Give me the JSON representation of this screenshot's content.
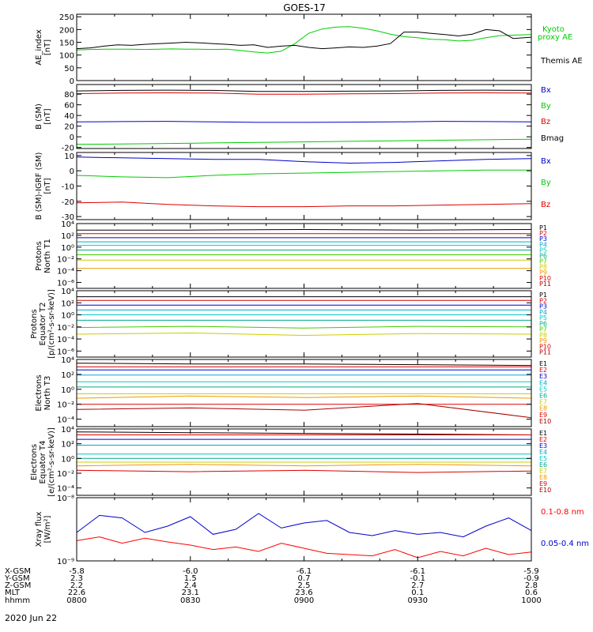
{
  "title": "GOES-17",
  "date": "2020 Jun 22",
  "colors": {
    "axis": "#000000",
    "red": "#dd0000",
    "green": "#00cc00",
    "blue": "#0000cc",
    "cyan": "#00aacc",
    "lightcyan": "#00c8c8",
    "teal": "#00aa88",
    "lime": "#44cc00",
    "yellow": "#cccc00",
    "orange": "#ee9900",
    "darkred": "#aa0000",
    "xray_red": "#ff0000"
  },
  "ephemeris": {
    "labels": [
      "X-GSM",
      "Y-GSM",
      "Z-GSM",
      "MLT",
      "hhmm"
    ],
    "columns": [
      [
        "-5.8",
        "2.3",
        "2.2",
        "22.6",
        "0800"
      ],
      [
        "-6.0",
        "1.5",
        "2.4",
        "23.1",
        "0830"
      ],
      [
        "-6.1",
        "0.7",
        "2.5",
        "23.6",
        "0900"
      ],
      [
        "-6.1",
        "-0.1",
        "2.7",
        "0.1",
        "0930"
      ],
      [
        "-5.9",
        "-0.9",
        "2.8",
        "0.6",
        "1000"
      ]
    ]
  },
  "chart_data": [
    {
      "type": "line",
      "ylabel": [
        "AE_index",
        "[nT]"
      ],
      "ylim": [
        0,
        260
      ],
      "yticks": [
        0,
        50,
        100,
        150,
        200,
        250
      ],
      "yticklabels": [
        "0",
        "50",
        "100",
        "150",
        "200",
        "250"
      ],
      "x": [
        0,
        0.03,
        0.06,
        0.09,
        0.12,
        0.15,
        0.18,
        0.21,
        0.24,
        0.27,
        0.3,
        0.33,
        0.36,
        0.39,
        0.42,
        0.45,
        0.48,
        0.51,
        0.54,
        0.57,
        0.6,
        0.63,
        0.66,
        0.69,
        0.72,
        0.75,
        0.78,
        0.81,
        0.84,
        0.87,
        0.9,
        0.93,
        0.96,
        1.0
      ],
      "series": [
        {
          "name": "Kyoto proxy AE",
          "label_lines": [
            "Kyoto",
            "proxy AE"
          ],
          "color": "#00cc00",
          "values": [
            120,
            122,
            123,
            123,
            123,
            122,
            123,
            124,
            123,
            123,
            122,
            123,
            118,
            112,
            108,
            115,
            145,
            185,
            202,
            210,
            211,
            205,
            195,
            182,
            172,
            168,
            162,
            160,
            155,
            158,
            168,
            176,
            178,
            180
          ]
        },
        {
          "name": "Themis AE",
          "label_lines": [
            "Themis AE"
          ],
          "color": "#000000",
          "values": [
            125,
            128,
            135,
            140,
            138,
            142,
            145,
            147,
            150,
            148,
            145,
            142,
            138,
            140,
            130,
            135,
            138,
            130,
            125,
            128,
            132,
            130,
            135,
            145,
            190,
            190,
            185,
            180,
            175,
            182,
            200,
            195,
            165,
            170
          ]
        }
      ]
    },
    {
      "type": "line",
      "ylabel": [
        "B (SM)",
        "[nT]"
      ],
      "ylim": [
        -22,
        98
      ],
      "yticks": [
        -20,
        0,
        20,
        40,
        60,
        80
      ],
      "yticklabels": [
        "-20",
        "0",
        "20",
        "40",
        "60",
        "80"
      ],
      "x": [
        0,
        0.1,
        0.2,
        0.3,
        0.4,
        0.5,
        0.6,
        0.7,
        0.8,
        0.9,
        1.0
      ],
      "series": [
        {
          "name": "Bx",
          "color": "#0000cc",
          "values": [
            28,
            28.5,
            29,
            28,
            27,
            27,
            27.5,
            28,
            29,
            28.5,
            28
          ]
        },
        {
          "name": "By",
          "color": "#00cc00",
          "values": [
            -14,
            -13.5,
            -12.5,
            -11.5,
            -10.5,
            -9.5,
            -8.5,
            -7.5,
            -6.5,
            -5.5,
            -4.5
          ]
        },
        {
          "name": "Bz",
          "color": "#dd0000",
          "values": [
            81,
            82,
            82.5,
            82,
            80,
            80,
            80.5,
            81,
            82,
            82.5,
            82
          ]
        },
        {
          "name": "Bmag",
          "color": "#000000",
          "values": [
            86,
            87,
            87.5,
            87,
            85,
            85,
            85.5,
            86,
            87,
            87.5,
            87
          ]
        }
      ]
    },
    {
      "type": "line",
      "ylabel": [
        "B (SM)-IGRF (SM)",
        "[nT]"
      ],
      "ylim": [
        -32,
        12
      ],
      "yticks": [
        -30,
        -20,
        -10,
        0,
        10
      ],
      "yticklabels": [
        "-30",
        "-20",
        "-10",
        "0",
        "10"
      ],
      "x": [
        0,
        0.1,
        0.2,
        0.3,
        0.4,
        0.5,
        0.6,
        0.7,
        0.8,
        0.9,
        1.0
      ],
      "series": [
        {
          "name": "Bx",
          "color": "#0000cc",
          "values": [
            9,
            8.5,
            8,
            7.5,
            7.5,
            6,
            5,
            5.5,
            6.5,
            7.5,
            8
          ]
        },
        {
          "name": "By",
          "color": "#00cc00",
          "values": [
            -3,
            -4,
            -4.5,
            -3,
            -2,
            -1.5,
            -1,
            -0.5,
            0,
            0.5,
            0.5
          ]
        },
        {
          "name": "Bz",
          "color": "#dd0000",
          "values": [
            -21,
            -20.5,
            -22,
            -23,
            -23.5,
            -23.5,
            -23,
            -23,
            -22.5,
            -22,
            -21.5
          ]
        }
      ]
    },
    {
      "type": "line",
      "log": true,
      "ylabel": [
        "Protons",
        "North T1"
      ],
      "ylim_exp": [
        -7,
        4
      ],
      "yticks_exp": [
        -6,
        -4,
        -2,
        0,
        2,
        4
      ],
      "yticklabels": [
        "10⁻⁶",
        "10⁻⁴",
        "10⁻²",
        "10⁰",
        "10²",
        "10⁴"
      ],
      "x": [
        0,
        0.25,
        0.5,
        0.75,
        1.0
      ],
      "series": [
        {
          "name": "P1",
          "color": "#000000",
          "values_exp": [
            2.9,
            2.9,
            3.0,
            2.9,
            3.0
          ]
        },
        {
          "name": "P2",
          "color": "#dd0000",
          "values_exp": [
            2.3,
            2.3,
            2.3,
            2.3,
            2.3
          ]
        },
        {
          "name": "P3",
          "color": "#0000cc",
          "values_exp": [
            1.6,
            1.6,
            1.6,
            1.6,
            1.6
          ]
        },
        {
          "name": "P4",
          "color": "#00aacc",
          "values_exp": [
            0.9,
            0.9,
            0.9,
            0.9,
            0.9
          ]
        },
        {
          "name": "P5",
          "color": "#00c8c8",
          "values_exp": [
            0.3,
            0.3,
            0.3,
            0.3,
            0.3
          ]
        },
        {
          "name": "P6",
          "color": "#00aa88",
          "values_exp": [
            -0.5,
            -0.5,
            -0.5,
            -0.5,
            -0.5
          ]
        },
        {
          "name": "P7",
          "color": "#44cc00",
          "values_exp": [
            -1.3,
            -1.3,
            -1.3,
            -1.3,
            -1.3
          ]
        },
        {
          "name": "P8",
          "color": "#cccc00",
          "values_exp": [
            -2.2,
            -2.2,
            -2.2,
            -2.2,
            -2.2
          ]
        },
        {
          "name": "P9",
          "color": "#ee9900",
          "values_exp": [
            -3.6,
            -3.6,
            -3.6,
            -3.6,
            -3.6
          ]
        },
        {
          "name": "P10",
          "color": "#dd0000",
          "values_exp": []
        },
        {
          "name": "P11",
          "color": "#aa0000",
          "values_exp": []
        }
      ]
    },
    {
      "type": "line",
      "log": true,
      "ylabel": [
        "Protons",
        "Equator T2",
        "[p/(cm²-s-sr-keV)]"
      ],
      "ylim_exp": [
        -7,
        4
      ],
      "yticks_exp": [
        -6,
        -4,
        -2,
        0,
        2,
        4
      ],
      "yticklabels": [
        "10⁻⁶",
        "10⁻⁴",
        "10⁻²",
        "10⁰",
        "10²",
        "10⁴"
      ],
      "x": [
        0,
        0.25,
        0.5,
        0.75,
        1.0
      ],
      "series": [
        {
          "name": "P1",
          "color": "#000000",
          "values_exp": [
            3.0,
            3.0,
            3.0,
            3.0,
            3.0
          ]
        },
        {
          "name": "P2",
          "color": "#dd0000",
          "values_exp": [
            2.4,
            2.4,
            2.4,
            2.4,
            2.4
          ]
        },
        {
          "name": "P3",
          "color": "#0000cc",
          "values_exp": [
            1.6,
            1.6,
            1.6,
            1.6,
            1.6
          ]
        },
        {
          "name": "P4",
          "color": "#00aacc",
          "values_exp": [
            0.8,
            0.8,
            0.8,
            0.8,
            0.8
          ]
        },
        {
          "name": "P5",
          "color": "#00c8c8",
          "values_exp": [
            0.0,
            0.0,
            0.0,
            0.0,
            0.0
          ]
        },
        {
          "name": "P6",
          "color": "#00aa88",
          "values_exp": [
            -0.9,
            -0.9,
            -0.9,
            -0.9,
            -0.9
          ]
        },
        {
          "name": "P7",
          "color": "#44cc00",
          "values_exp": [
            -2.1,
            -1.9,
            -2.2,
            -1.9,
            -2.0
          ]
        },
        {
          "name": "P8",
          "color": "#cccc00",
          "values_exp": [
            -3.2,
            -3.0,
            -3.4,
            -3.1,
            -3.2
          ]
        },
        {
          "name": "P9",
          "color": "#ee9900",
          "values_exp": []
        },
        {
          "name": "P10",
          "color": "#dd0000",
          "values_exp": []
        },
        {
          "name": "P11",
          "color": "#aa0000",
          "values_exp": []
        }
      ]
    },
    {
      "type": "line",
      "log": true,
      "ylabel": [
        "Electrons",
        "North T3"
      ],
      "ylim_exp": [
        -5,
        4
      ],
      "yticks_exp": [
        -4,
        -2,
        0,
        2,
        4
      ],
      "yticklabels": [
        "10⁻⁴",
        "10⁻²",
        "10⁰",
        "10²",
        "10⁴"
      ],
      "x": [
        0,
        0.25,
        0.5,
        0.75,
        1.0
      ],
      "series": [
        {
          "name": "E1",
          "color": "#000000",
          "values_exp": [
            3.5,
            3.4,
            3.4,
            3.3,
            3.2
          ]
        },
        {
          "name": "E2",
          "color": "#dd0000",
          "values_exp": [
            3.0,
            3.0,
            3.0,
            3.0,
            3.0
          ]
        },
        {
          "name": "E3",
          "color": "#0000cc",
          "values_exp": [
            2.6,
            2.6,
            2.6,
            2.6,
            2.6
          ]
        },
        {
          "name": "E4",
          "color": "#00aacc",
          "values_exp": [
            1.9,
            1.9,
            1.9,
            1.9,
            1.9
          ]
        },
        {
          "name": "E5",
          "color": "#00c8c8",
          "values_exp": [
            1.0,
            1.0,
            1.0,
            1.0,
            1.0
          ]
        },
        {
          "name": "E6",
          "color": "#00aa88",
          "values_exp": [
            0.3,
            0.3,
            0.3,
            0.3,
            0.3
          ]
        },
        {
          "name": "E7",
          "color": "#cccc00",
          "values_exp": [
            -0.6,
            -0.6,
            -0.6,
            -0.6,
            -0.6
          ]
        },
        {
          "name": "E8",
          "color": "#ee9900",
          "values_exp": [
            -1.2,
            -0.9,
            -1.1,
            -0.9,
            -1.2
          ]
        },
        {
          "name": "E9",
          "color": "#dd0000",
          "values_exp": [
            -2.0,
            -2.0,
            -2.0,
            -2.0,
            -2.0
          ]
        },
        {
          "name": "E10",
          "color": "#aa0000",
          "values_exp": [
            -2.7,
            -2.5,
            -2.8,
            -1.9,
            -3.8
          ]
        }
      ]
    },
    {
      "type": "line",
      "log": true,
      "ylabel": [
        "Electrons",
        "Equator T4",
        "[e/(cm²-s-sr-keV)]"
      ],
      "ylim_exp": [
        -5,
        4
      ],
      "yticks_exp": [
        -4,
        -2,
        0,
        2,
        4
      ],
      "yticklabels": [
        "10⁻⁴",
        "10⁻²",
        "10⁰",
        "10²",
        "10⁴"
      ],
      "x": [
        0,
        0.25,
        0.5,
        0.75,
        1.0
      ],
      "series": [
        {
          "name": "E1",
          "color": "#000000",
          "values_exp": [
            3.6,
            3.5,
            3.4,
            3.3,
            3.2
          ]
        },
        {
          "name": "E2",
          "color": "#dd0000",
          "values_exp": [
            3.2,
            3.2,
            3.2,
            3.2,
            3.2
          ]
        },
        {
          "name": "E3",
          "color": "#0000cc",
          "values_exp": [
            2.6,
            2.6,
            2.6,
            2.6,
            2.6
          ]
        },
        {
          "name": "E4",
          "color": "#00aacc",
          "values_exp": [
            1.8,
            1.8,
            1.8,
            1.8,
            1.8
          ]
        },
        {
          "name": "E5",
          "color": "#00c8c8",
          "values_exp": [
            0.6,
            0.6,
            0.6,
            0.6,
            0.6
          ]
        },
        {
          "name": "E6",
          "color": "#00aa88",
          "values_exp": [
            0.0,
            0.0,
            0.0,
            0.0,
            0.0
          ]
        },
        {
          "name": "E7",
          "color": "#cccc00",
          "values_exp": [
            -0.5,
            -0.5,
            -0.5,
            -0.5,
            -0.5
          ]
        },
        {
          "name": "E8",
          "color": "#ee9900",
          "values_exp": [
            -1.0,
            -0.8,
            -1.0,
            -0.8,
            -1.0
          ]
        },
        {
          "name": "E9",
          "color": "#dd0000",
          "values_exp": [
            -1.6,
            -1.8,
            -1.6,
            -1.9,
            -1.7
          ]
        },
        {
          "name": "E10",
          "color": "#aa0000",
          "values_exp": []
        }
      ]
    },
    {
      "type": "line",
      "log": true,
      "ylabel": [
        "Xray flux",
        "[W/m²]"
      ],
      "ylim_exp": [
        -9,
        -8
      ],
      "yticks_exp": [
        -9,
        -8
      ],
      "yticklabels": [
        "10⁻⁹",
        "10⁻⁸"
      ],
      "x": [
        0,
        0.05,
        0.1,
        0.15,
        0.2,
        0.25,
        0.3,
        0.35,
        0.4,
        0.45,
        0.5,
        0.55,
        0.6,
        0.65,
        0.7,
        0.75,
        0.8,
        0.85,
        0.9,
        0.95,
        1.0
      ],
      "series": [
        {
          "name": "0.1-0.8 nm",
          "color": "#ff0000",
          "values_exp": [
            -8.68,
            -8.62,
            -8.72,
            -8.64,
            -8.7,
            -8.75,
            -8.82,
            -8.78,
            -8.85,
            -8.72,
            -8.8,
            -8.88,
            -8.9,
            -8.92,
            -8.82,
            -8.95,
            -8.85,
            -8.92,
            -8.8,
            -8.9,
            -8.86
          ]
        },
        {
          "name": "0.05-0.4 nm",
          "color": "#0000cc",
          "values_exp": [
            -8.55,
            -8.28,
            -8.32,
            -8.55,
            -8.45,
            -8.3,
            -8.58,
            -8.5,
            -8.25,
            -8.48,
            -8.4,
            -8.36,
            -8.55,
            -8.6,
            -8.52,
            -8.58,
            -8.55,
            -8.62,
            -8.45,
            -8.32,
            -8.52
          ]
        }
      ]
    }
  ]
}
